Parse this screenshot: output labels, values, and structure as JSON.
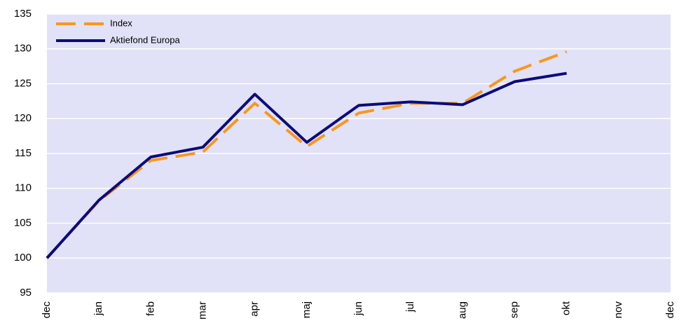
{
  "chart_data": {
    "type": "line",
    "categories": [
      "dec",
      "jan",
      "feb",
      "mar",
      "apr",
      "maj",
      "jun",
      "jul",
      "aug",
      "sep",
      "okt",
      "nov",
      "dec"
    ],
    "series": [
      {
        "name": "Index",
        "color": "#f7981d",
        "linestyle": "dashed",
        "values": [
          100,
          108.2,
          114.0,
          115.2,
          122.2,
          116.0,
          120.8,
          122.2,
          122.2,
          126.8,
          129.6,
          null,
          null
        ]
      },
      {
        "name": "Aktiefond Europa",
        "color": "#0c0c7a",
        "linestyle": "solid",
        "values": [
          100,
          108.3,
          114.5,
          115.9,
          123.5,
          116.6,
          121.9,
          122.4,
          122.0,
          125.3,
          126.5,
          null,
          null
        ]
      }
    ],
    "ylim": [
      95,
      135
    ],
    "yticks": [
      95,
      100,
      105,
      110,
      115,
      120,
      125,
      130,
      135
    ],
    "grid": true,
    "legend": "upper left",
    "background": "#e1e1f7"
  }
}
